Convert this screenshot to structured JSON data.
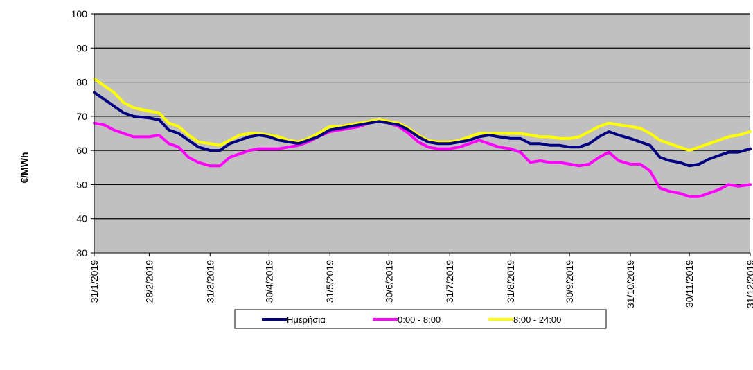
{
  "chart_data": {
    "type": "line",
    "title": "",
    "xlabel": "",
    "ylabel": "€/MWh",
    "ylim": [
      30,
      100
    ],
    "yticks": [
      30,
      40,
      50,
      60,
      70,
      80,
      90,
      100
    ],
    "xlim": [
      "2019-01-31",
      "2019-12-31"
    ],
    "xticks": [
      {
        "date": "2019-01-31",
        "label": "31/1/2019"
      },
      {
        "date": "2019-02-28",
        "label": "28/2/2019"
      },
      {
        "date": "2019-03-31",
        "label": "31/3/2019"
      },
      {
        "date": "2019-04-30",
        "label": "30/4/2019"
      },
      {
        "date": "2019-05-31",
        "label": "31/5/2019"
      },
      {
        "date": "2019-06-30",
        "label": "30/6/2019"
      },
      {
        "date": "2019-07-31",
        "label": "31/7/2019"
      },
      {
        "date": "2019-08-31",
        "label": "31/8/2019"
      },
      {
        "date": "2019-09-30",
        "label": "30/9/2019"
      },
      {
        "date": "2019-10-31",
        "label": "31/10/2019"
      },
      {
        "date": "2019-11-30",
        "label": "30/11/2019"
      },
      {
        "date": "2019-12-31",
        "label": "31/12/2019"
      }
    ],
    "grid": true,
    "legend": "bottom",
    "plot_background": "#c0c0c0",
    "series": [
      {
        "name": "Ημερήσια",
        "color": "#000080",
        "points": [
          [
            "2019-01-31",
            77
          ],
          [
            "2019-02-05",
            75
          ],
          [
            "2019-02-10",
            73
          ],
          [
            "2019-02-15",
            71
          ],
          [
            "2019-02-20",
            70
          ],
          [
            "2019-02-28",
            69.5
          ],
          [
            "2019-03-05",
            69
          ],
          [
            "2019-03-10",
            66
          ],
          [
            "2019-03-15",
            65
          ],
          [
            "2019-03-20",
            63
          ],
          [
            "2019-03-25",
            61
          ],
          [
            "2019-03-31",
            60
          ],
          [
            "2019-04-05",
            60
          ],
          [
            "2019-04-10",
            62
          ],
          [
            "2019-04-15",
            63
          ],
          [
            "2019-04-20",
            64
          ],
          [
            "2019-04-25",
            64.5
          ],
          [
            "2019-04-30",
            64
          ],
          [
            "2019-05-05",
            63
          ],
          [
            "2019-05-10",
            62.5
          ],
          [
            "2019-05-15",
            62
          ],
          [
            "2019-05-20",
            63
          ],
          [
            "2019-05-25",
            64
          ],
          [
            "2019-05-31",
            66
          ],
          [
            "2019-06-05",
            66.5
          ],
          [
            "2019-06-10",
            67
          ],
          [
            "2019-06-15",
            67.5
          ],
          [
            "2019-06-20",
            68
          ],
          [
            "2019-06-25",
            68.5
          ],
          [
            "2019-06-30",
            68
          ],
          [
            "2019-07-05",
            67.5
          ],
          [
            "2019-07-10",
            66
          ],
          [
            "2019-07-15",
            64
          ],
          [
            "2019-07-20",
            62.5
          ],
          [
            "2019-07-25",
            62
          ],
          [
            "2019-07-31",
            62
          ],
          [
            "2019-08-05",
            62.5
          ],
          [
            "2019-08-10",
            63
          ],
          [
            "2019-08-15",
            64
          ],
          [
            "2019-08-20",
            64.5
          ],
          [
            "2019-08-25",
            64
          ],
          [
            "2019-08-31",
            63.5
          ],
          [
            "2019-09-05",
            63.5
          ],
          [
            "2019-09-10",
            62
          ],
          [
            "2019-09-15",
            62
          ],
          [
            "2019-09-20",
            61.5
          ],
          [
            "2019-09-25",
            61.5
          ],
          [
            "2019-09-30",
            61
          ],
          [
            "2019-10-05",
            61
          ],
          [
            "2019-10-10",
            62
          ],
          [
            "2019-10-15",
            64
          ],
          [
            "2019-10-20",
            65.5
          ],
          [
            "2019-10-25",
            64.5
          ],
          [
            "2019-10-31",
            63.5
          ],
          [
            "2019-11-05",
            62.5
          ],
          [
            "2019-11-10",
            61.5
          ],
          [
            "2019-11-15",
            58
          ],
          [
            "2019-11-20",
            57
          ],
          [
            "2019-11-25",
            56.5
          ],
          [
            "2019-11-30",
            55.5
          ],
          [
            "2019-12-05",
            56
          ],
          [
            "2019-12-10",
            57.5
          ],
          [
            "2019-12-15",
            58.5
          ],
          [
            "2019-12-20",
            59.5
          ],
          [
            "2019-12-25",
            59.5
          ],
          [
            "2019-12-31",
            60.5
          ]
        ]
      },
      {
        "name": "0:00 - 8:00",
        "color": "#ff00ff",
        "points": [
          [
            "2019-01-31",
            68
          ],
          [
            "2019-02-05",
            67.5
          ],
          [
            "2019-02-10",
            66
          ],
          [
            "2019-02-15",
            65
          ],
          [
            "2019-02-20",
            64
          ],
          [
            "2019-02-28",
            64
          ],
          [
            "2019-03-05",
            64.5
          ],
          [
            "2019-03-10",
            62
          ],
          [
            "2019-03-15",
            61
          ],
          [
            "2019-03-20",
            58
          ],
          [
            "2019-03-25",
            56.5
          ],
          [
            "2019-03-31",
            55.5
          ],
          [
            "2019-04-05",
            55.5
          ],
          [
            "2019-04-10",
            58
          ],
          [
            "2019-04-15",
            59
          ],
          [
            "2019-04-20",
            60
          ],
          [
            "2019-04-25",
            60.5
          ],
          [
            "2019-04-30",
            60.5
          ],
          [
            "2019-05-05",
            60.5
          ],
          [
            "2019-05-10",
            61
          ],
          [
            "2019-05-15",
            61.5
          ],
          [
            "2019-05-20",
            62.5
          ],
          [
            "2019-05-25",
            64
          ],
          [
            "2019-05-31",
            65.5
          ],
          [
            "2019-06-05",
            66
          ],
          [
            "2019-06-10",
            66.5
          ],
          [
            "2019-06-15",
            67
          ],
          [
            "2019-06-20",
            68
          ],
          [
            "2019-06-25",
            68.5
          ],
          [
            "2019-06-30",
            68
          ],
          [
            "2019-07-05",
            67
          ],
          [
            "2019-07-10",
            65
          ],
          [
            "2019-07-15",
            62.5
          ],
          [
            "2019-07-20",
            61
          ],
          [
            "2019-07-25",
            60.5
          ],
          [
            "2019-07-31",
            60.5
          ],
          [
            "2019-08-05",
            61
          ],
          [
            "2019-08-10",
            62
          ],
          [
            "2019-08-15",
            63
          ],
          [
            "2019-08-20",
            62
          ],
          [
            "2019-08-25",
            61
          ],
          [
            "2019-08-31",
            60.5
          ],
          [
            "2019-09-05",
            59.5
          ],
          [
            "2019-09-10",
            56.5
          ],
          [
            "2019-09-15",
            57
          ],
          [
            "2019-09-20",
            56.5
          ],
          [
            "2019-09-25",
            56.5
          ],
          [
            "2019-09-30",
            56
          ],
          [
            "2019-10-05",
            55.5
          ],
          [
            "2019-10-10",
            56
          ],
          [
            "2019-10-15",
            58
          ],
          [
            "2019-10-20",
            59.5
          ],
          [
            "2019-10-25",
            57
          ],
          [
            "2019-10-31",
            56
          ],
          [
            "2019-11-05",
            56
          ],
          [
            "2019-11-10",
            54
          ],
          [
            "2019-11-15",
            49
          ],
          [
            "2019-11-20",
            48
          ],
          [
            "2019-11-25",
            47.5
          ],
          [
            "2019-11-30",
            46.5
          ],
          [
            "2019-12-05",
            46.5
          ],
          [
            "2019-12-10",
            47.5
          ],
          [
            "2019-12-15",
            48.5
          ],
          [
            "2019-12-20",
            50
          ],
          [
            "2019-12-25",
            49.5
          ],
          [
            "2019-12-31",
            50
          ]
        ]
      },
      {
        "name": "8:00 - 24:00",
        "color": "#ffff00",
        "points": [
          [
            "2019-01-31",
            81
          ],
          [
            "2019-02-05",
            79
          ],
          [
            "2019-02-10",
            77
          ],
          [
            "2019-02-15",
            74
          ],
          [
            "2019-02-20",
            72.5
          ],
          [
            "2019-02-28",
            71.5
          ],
          [
            "2019-03-05",
            71
          ],
          [
            "2019-03-10",
            68
          ],
          [
            "2019-03-15",
            67
          ],
          [
            "2019-03-20",
            64.5
          ],
          [
            "2019-03-25",
            62.5
          ],
          [
            "2019-03-31",
            62
          ],
          [
            "2019-04-05",
            61.5
          ],
          [
            "2019-04-10",
            63
          ],
          [
            "2019-04-15",
            64.5
          ],
          [
            "2019-04-20",
            65
          ],
          [
            "2019-04-25",
            65
          ],
          [
            "2019-04-30",
            64.5
          ],
          [
            "2019-05-05",
            64
          ],
          [
            "2019-05-10",
            63
          ],
          [
            "2019-05-15",
            62.5
          ],
          [
            "2019-05-20",
            63.5
          ],
          [
            "2019-05-25",
            65
          ],
          [
            "2019-05-31",
            67
          ],
          [
            "2019-06-05",
            67
          ],
          [
            "2019-06-10",
            67.5
          ],
          [
            "2019-06-15",
            68
          ],
          [
            "2019-06-20",
            68.5
          ],
          [
            "2019-06-25",
            69
          ],
          [
            "2019-06-30",
            68.5
          ],
          [
            "2019-07-05",
            68
          ],
          [
            "2019-07-10",
            66.5
          ],
          [
            "2019-07-15",
            64.5
          ],
          [
            "2019-07-20",
            63
          ],
          [
            "2019-07-25",
            62.5
          ],
          [
            "2019-07-31",
            62.5
          ],
          [
            "2019-08-05",
            63
          ],
          [
            "2019-08-10",
            64
          ],
          [
            "2019-08-15",
            65
          ],
          [
            "2019-08-20",
            65
          ],
          [
            "2019-08-25",
            65
          ],
          [
            "2019-08-31",
            65
          ],
          [
            "2019-09-05",
            65
          ],
          [
            "2019-09-10",
            64.5
          ],
          [
            "2019-09-15",
            64
          ],
          [
            "2019-09-20",
            64
          ],
          [
            "2019-09-25",
            63.5
          ],
          [
            "2019-09-30",
            63.5
          ],
          [
            "2019-10-05",
            64
          ],
          [
            "2019-10-10",
            65.5
          ],
          [
            "2019-10-15",
            67
          ],
          [
            "2019-10-20",
            68
          ],
          [
            "2019-10-25",
            67.5
          ],
          [
            "2019-10-31",
            67
          ],
          [
            "2019-11-05",
            66.5
          ],
          [
            "2019-11-10",
            65
          ],
          [
            "2019-11-15",
            63
          ],
          [
            "2019-11-20",
            62
          ],
          [
            "2019-11-25",
            61
          ],
          [
            "2019-11-30",
            60
          ],
          [
            "2019-12-05",
            61
          ],
          [
            "2019-12-10",
            62
          ],
          [
            "2019-12-15",
            63
          ],
          [
            "2019-12-20",
            64
          ],
          [
            "2019-12-25",
            64.5
          ],
          [
            "2019-12-31",
            65.5
          ]
        ]
      }
    ]
  }
}
